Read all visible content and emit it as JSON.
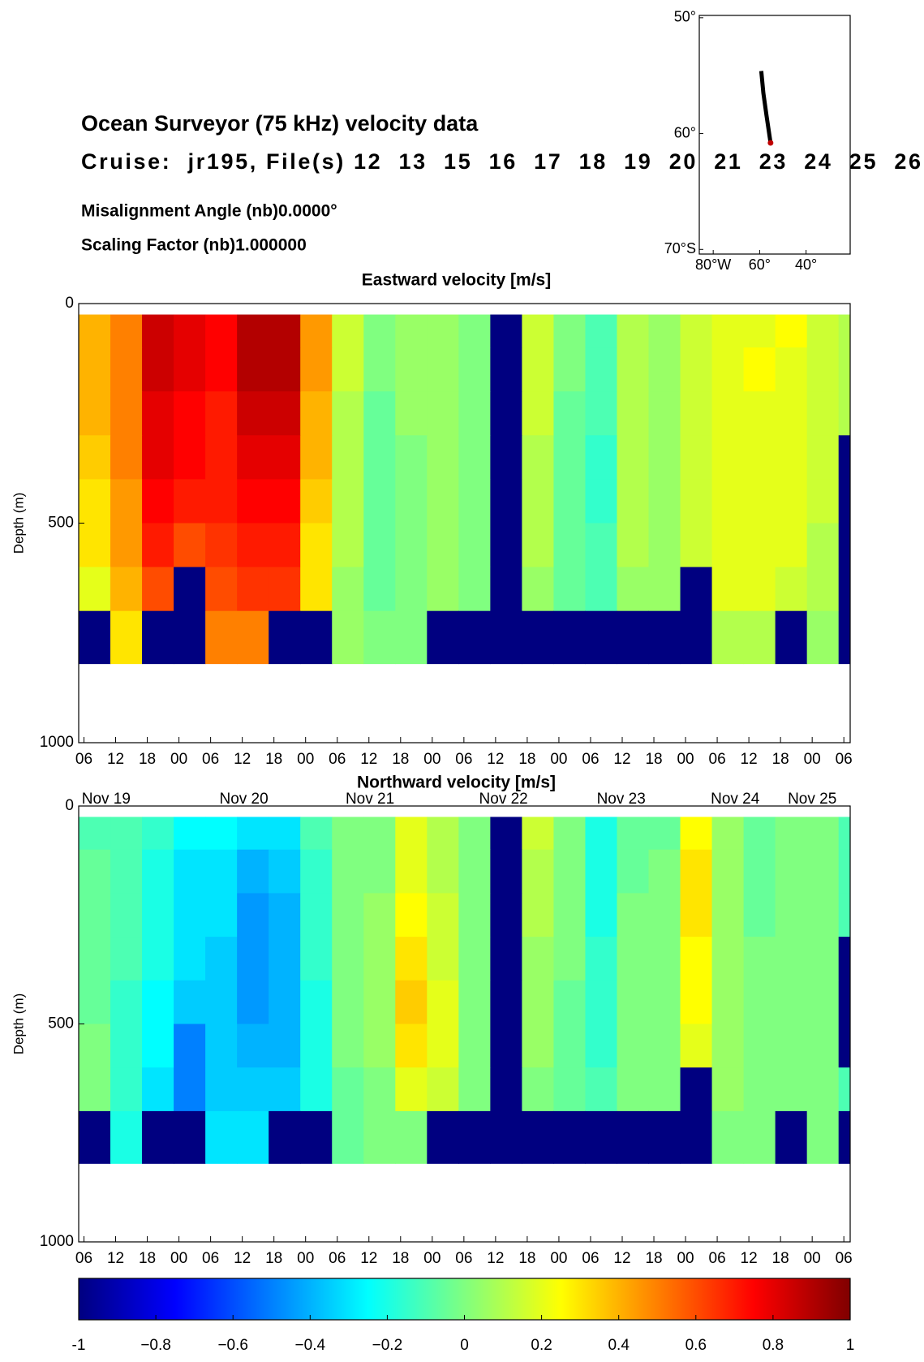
{
  "header": {
    "title": "Ocean Surveyor (75 kHz) velocity data",
    "cruise": "Cruise:  jr195, File(s) 12  13  15  16  17  18  19  20  21  23  24  25  26",
    "misalignment": "Misalignment Angle (nb)0.0000°",
    "scaling": "Scaling Factor (nb)1.000000"
  },
  "chart_data": [
    {
      "type": "line",
      "x": [
        -59.3,
        -58.4,
        -57.0,
        -55.3
      ],
      "y": [
        -54.6,
        -56.5,
        -58.5,
        -60.8
      ],
      "color": "#000000",
      "end_marker_color": "#c00000",
      "xlim": [
        -86,
        -21
      ],
      "ylim": [
        -70.4,
        -49.8
      ],
      "xticks": [
        {
          "value": -80,
          "label": "80°W"
        },
        {
          "value": -60,
          "label": "60°"
        },
        {
          "value": -40,
          "label": "40°"
        }
      ],
      "yticks": [
        {
          "value": -50,
          "label": "50°"
        },
        {
          "value": -60,
          "label": "60°"
        },
        {
          "value": -70,
          "label": "70°S"
        }
      ]
    },
    {
      "type": "heatmap",
      "title": "Eastward velocity [m/s]",
      "ylabel": "Depth (m)",
      "xlim": [
        5,
        151.2
      ],
      "ylim": [
        1000,
        0
      ],
      "yticks": [
        0,
        500,
        1000
      ],
      "xticks": [
        {
          "value": 6,
          "label": "06"
        },
        {
          "value": 12,
          "label": "12"
        },
        {
          "value": 18,
          "label": "18"
        },
        {
          "value": 24,
          "label": "00"
        },
        {
          "value": 30,
          "label": "06"
        },
        {
          "value": 36,
          "label": "12"
        },
        {
          "value": 42,
          "label": "18"
        },
        {
          "value": 48,
          "label": "00"
        },
        {
          "value": 54,
          "label": "06"
        },
        {
          "value": 60,
          "label": "12"
        },
        {
          "value": 66,
          "label": "18"
        },
        {
          "value": 72,
          "label": "00"
        },
        {
          "value": 78,
          "label": "06"
        },
        {
          "value": 84,
          "label": "12"
        },
        {
          "value": 90,
          "label": "18"
        },
        {
          "value": 96,
          "label": "00"
        },
        {
          "value": 102,
          "label": "06"
        },
        {
          "value": 108,
          "label": "12"
        },
        {
          "value": 114,
          "label": "18"
        },
        {
          "value": 120,
          "label": "00"
        },
        {
          "value": 126,
          "label": "06"
        },
        {
          "value": 132,
          "label": "12"
        },
        {
          "value": 138,
          "label": "18"
        },
        {
          "value": 144,
          "label": "00"
        },
        {
          "value": 150,
          "label": "06"
        }
      ],
      "date_labels": [
        {
          "value": 10.2,
          "label": "Nov 19"
        },
        {
          "value": 36.3,
          "label": "Nov 20"
        },
        {
          "value": 60.2,
          "label": "Nov 21"
        },
        {
          "value": 85.5,
          "label": "Nov 22"
        },
        {
          "value": 107.8,
          "label": "Nov 23"
        },
        {
          "value": 129.4,
          "label": "Nov 24"
        },
        {
          "value": 144,
          "label": "Nov 25"
        }
      ],
      "x_edges": [
        5,
        11,
        17,
        23,
        29,
        35,
        41,
        47,
        53,
        59,
        65,
        71,
        77,
        83,
        89,
        95,
        101,
        107,
        113,
        119,
        125,
        131,
        137,
        143,
        149,
        151.2
      ],
      "y_edges": [
        25,
        100,
        200,
        300,
        400,
        500,
        600,
        700,
        820
      ],
      "values": [
        [
          0.4,
          0.5,
          0.85,
          0.8,
          0.75,
          0.9,
          0.9,
          0.45,
          0.15,
          0,
          0.05,
          0.05,
          0,
          -1,
          0.15,
          0,
          -0.1,
          0.1,
          0.05,
          0.15,
          0.2,
          0.2,
          0.25,
          0.15,
          0.1
        ],
        [
          0.4,
          0.5,
          0.85,
          0.8,
          0.75,
          0.9,
          0.9,
          0.45,
          0.15,
          0,
          0.05,
          0.05,
          0,
          -1,
          0.15,
          0,
          -0.1,
          0.1,
          0.05,
          0.15,
          0.2,
          0.25,
          0.2,
          0.15,
          0.1
        ],
        [
          0.4,
          0.5,
          0.8,
          0.75,
          0.7,
          0.85,
          0.85,
          0.4,
          0.1,
          -0.05,
          0.05,
          0.05,
          0,
          -1,
          0.15,
          -0.05,
          -0.1,
          0.1,
          0.05,
          0.15,
          0.2,
          0.2,
          0.2,
          0.15,
          0.1
        ],
        [
          0.35,
          0.5,
          0.8,
          0.75,
          0.7,
          0.8,
          0.8,
          0.4,
          0.1,
          -0.05,
          0,
          0.05,
          0,
          -1,
          0.1,
          -0.05,
          -0.15,
          0.1,
          0.05,
          0.15,
          0.2,
          0.2,
          0.2,
          0.15,
          -1
        ],
        [
          0.3,
          0.45,
          0.75,
          0.7,
          0.7,
          0.75,
          0.75,
          0.35,
          0.1,
          -0.05,
          0,
          0.05,
          0,
          -1,
          0.1,
          -0.05,
          -0.15,
          0.1,
          0.05,
          0.15,
          0.2,
          0.2,
          0.2,
          0.15,
          -1
        ],
        [
          0.3,
          0.45,
          0.7,
          0.6,
          0.65,
          0.7,
          0.7,
          0.3,
          0.1,
          -0.05,
          0,
          0.05,
          0,
          -1,
          0.1,
          -0.05,
          -0.1,
          0.1,
          0.05,
          0.15,
          0.2,
          0.2,
          0.2,
          0.1,
          -1
        ],
        [
          0.2,
          0.4,
          0.6,
          -1,
          0.6,
          0.65,
          0.65,
          0.3,
          0.05,
          -0.05,
          0,
          0.05,
          0,
          -1,
          0.05,
          -0.05,
          -0.1,
          0.05,
          0.05,
          -1,
          0.2,
          0.2,
          0.15,
          0.1,
          -1
        ],
        [
          -1,
          0.3,
          -1,
          -1,
          0.5,
          0.5,
          -1,
          -1,
          0.05,
          0,
          0,
          -1,
          -1,
          -1,
          -1,
          -1,
          -1,
          -1,
          -1,
          -1,
          0.1,
          0.1,
          -1,
          0.05,
          -1
        ]
      ]
    },
    {
      "type": "heatmap",
      "title": "Northward velocity [m/s]",
      "ylabel": "Depth (m)",
      "xlim": [
        5,
        151.2
      ],
      "ylim": [
        1000,
        0
      ],
      "yticks": [
        0,
        500,
        1000
      ],
      "xticks": [
        {
          "value": 6,
          "label": "06"
        },
        {
          "value": 12,
          "label": "12"
        },
        {
          "value": 18,
          "label": "18"
        },
        {
          "value": 24,
          "label": "00"
        },
        {
          "value": 30,
          "label": "06"
        },
        {
          "value": 36,
          "label": "12"
        },
        {
          "value": 42,
          "label": "18"
        },
        {
          "value": 48,
          "label": "00"
        },
        {
          "value": 54,
          "label": "06"
        },
        {
          "value": 60,
          "label": "12"
        },
        {
          "value": 66,
          "label": "18"
        },
        {
          "value": 72,
          "label": "00"
        },
        {
          "value": 78,
          "label": "06"
        },
        {
          "value": 84,
          "label": "12"
        },
        {
          "value": 90,
          "label": "18"
        },
        {
          "value": 96,
          "label": "00"
        },
        {
          "value": 102,
          "label": "06"
        },
        {
          "value": 108,
          "label": "12"
        },
        {
          "value": 114,
          "label": "18"
        },
        {
          "value": 120,
          "label": "00"
        },
        {
          "value": 126,
          "label": "06"
        },
        {
          "value": 132,
          "label": "12"
        },
        {
          "value": 138,
          "label": "18"
        },
        {
          "value": 144,
          "label": "00"
        },
        {
          "value": 150,
          "label": "06"
        }
      ],
      "x_edges": [
        5,
        11,
        17,
        23,
        29,
        35,
        41,
        47,
        53,
        59,
        65,
        71,
        77,
        83,
        89,
        95,
        101,
        107,
        113,
        119,
        125,
        131,
        137,
        143,
        149,
        151.2
      ],
      "y_edges": [
        25,
        100,
        200,
        300,
        400,
        500,
        600,
        700,
        820
      ],
      "values": [
        [
          -0.1,
          -0.1,
          -0.15,
          -0.25,
          -0.25,
          -0.3,
          -0.3,
          -0.1,
          0,
          0,
          0.2,
          0.1,
          0,
          -1,
          0.15,
          0,
          -0.2,
          -0.05,
          -0.05,
          0.25,
          0.05,
          -0.05,
          0,
          0,
          -0.1
        ],
        [
          -0.05,
          -0.1,
          -0.2,
          -0.3,
          -0.3,
          -0.4,
          -0.35,
          -0.15,
          0,
          0,
          0.2,
          0.1,
          0,
          -1,
          0.1,
          0,
          -0.2,
          -0.05,
          0,
          0.3,
          0.05,
          -0.05,
          0,
          0,
          -0.1
        ],
        [
          -0.05,
          -0.1,
          -0.2,
          -0.3,
          -0.3,
          -0.45,
          -0.4,
          -0.15,
          0,
          0.05,
          0.25,
          0.15,
          0,
          -1,
          0.1,
          0,
          -0.2,
          0,
          0,
          0.3,
          0.05,
          -0.05,
          0,
          0,
          -0.1
        ],
        [
          -0.05,
          -0.1,
          -0.2,
          -0.3,
          -0.35,
          -0.45,
          -0.4,
          -0.15,
          0,
          0.05,
          0.3,
          0.15,
          0,
          -1,
          0.05,
          0,
          -0.15,
          0,
          0,
          0.25,
          0.05,
          0,
          0,
          0,
          -1
        ],
        [
          -0.05,
          -0.15,
          -0.25,
          -0.35,
          -0.35,
          -0.45,
          -0.4,
          -0.2,
          0,
          0.05,
          0.35,
          0.2,
          0,
          -1,
          0.05,
          -0.05,
          -0.15,
          0,
          0,
          0.25,
          0.05,
          0,
          0,
          0,
          -1
        ],
        [
          0,
          -0.15,
          -0.25,
          -0.5,
          -0.35,
          -0.4,
          -0.4,
          -0.2,
          0,
          0.05,
          0.3,
          0.2,
          0,
          -1,
          0.05,
          -0.05,
          -0.15,
          0,
          0,
          0.2,
          0.05,
          0,
          0,
          0,
          -1
        ],
        [
          0,
          -0.15,
          -0.3,
          -0.5,
          -0.35,
          -0.35,
          -0.35,
          -0.2,
          -0.05,
          0,
          0.2,
          0.15,
          0,
          -1,
          0,
          -0.05,
          -0.1,
          0,
          0,
          -1,
          0.05,
          0,
          0,
          0,
          -0.1
        ],
        [
          -1,
          -0.2,
          -1,
          -1,
          -0.3,
          -0.3,
          -1,
          -1,
          -0.05,
          0,
          0,
          -1,
          -1,
          -1,
          -1,
          -1,
          -1,
          -1,
          -1,
          -1,
          0,
          0,
          -1,
          0,
          -1
        ]
      ]
    },
    {
      "type": "colorbar",
      "colormap": "jet",
      "xlim": [
        -1,
        1
      ],
      "xticks": [
        -1,
        {
          "value": -0.8,
          "label": "−0.8"
        },
        {
          "value": -0.6,
          "label": "−0.6"
        },
        {
          "value": -0.4,
          "label": "−0.4"
        },
        {
          "value": -0.2,
          "label": "−0.2"
        },
        0,
        0.2,
        0.4,
        0.6,
        0.8,
        1
      ]
    }
  ]
}
